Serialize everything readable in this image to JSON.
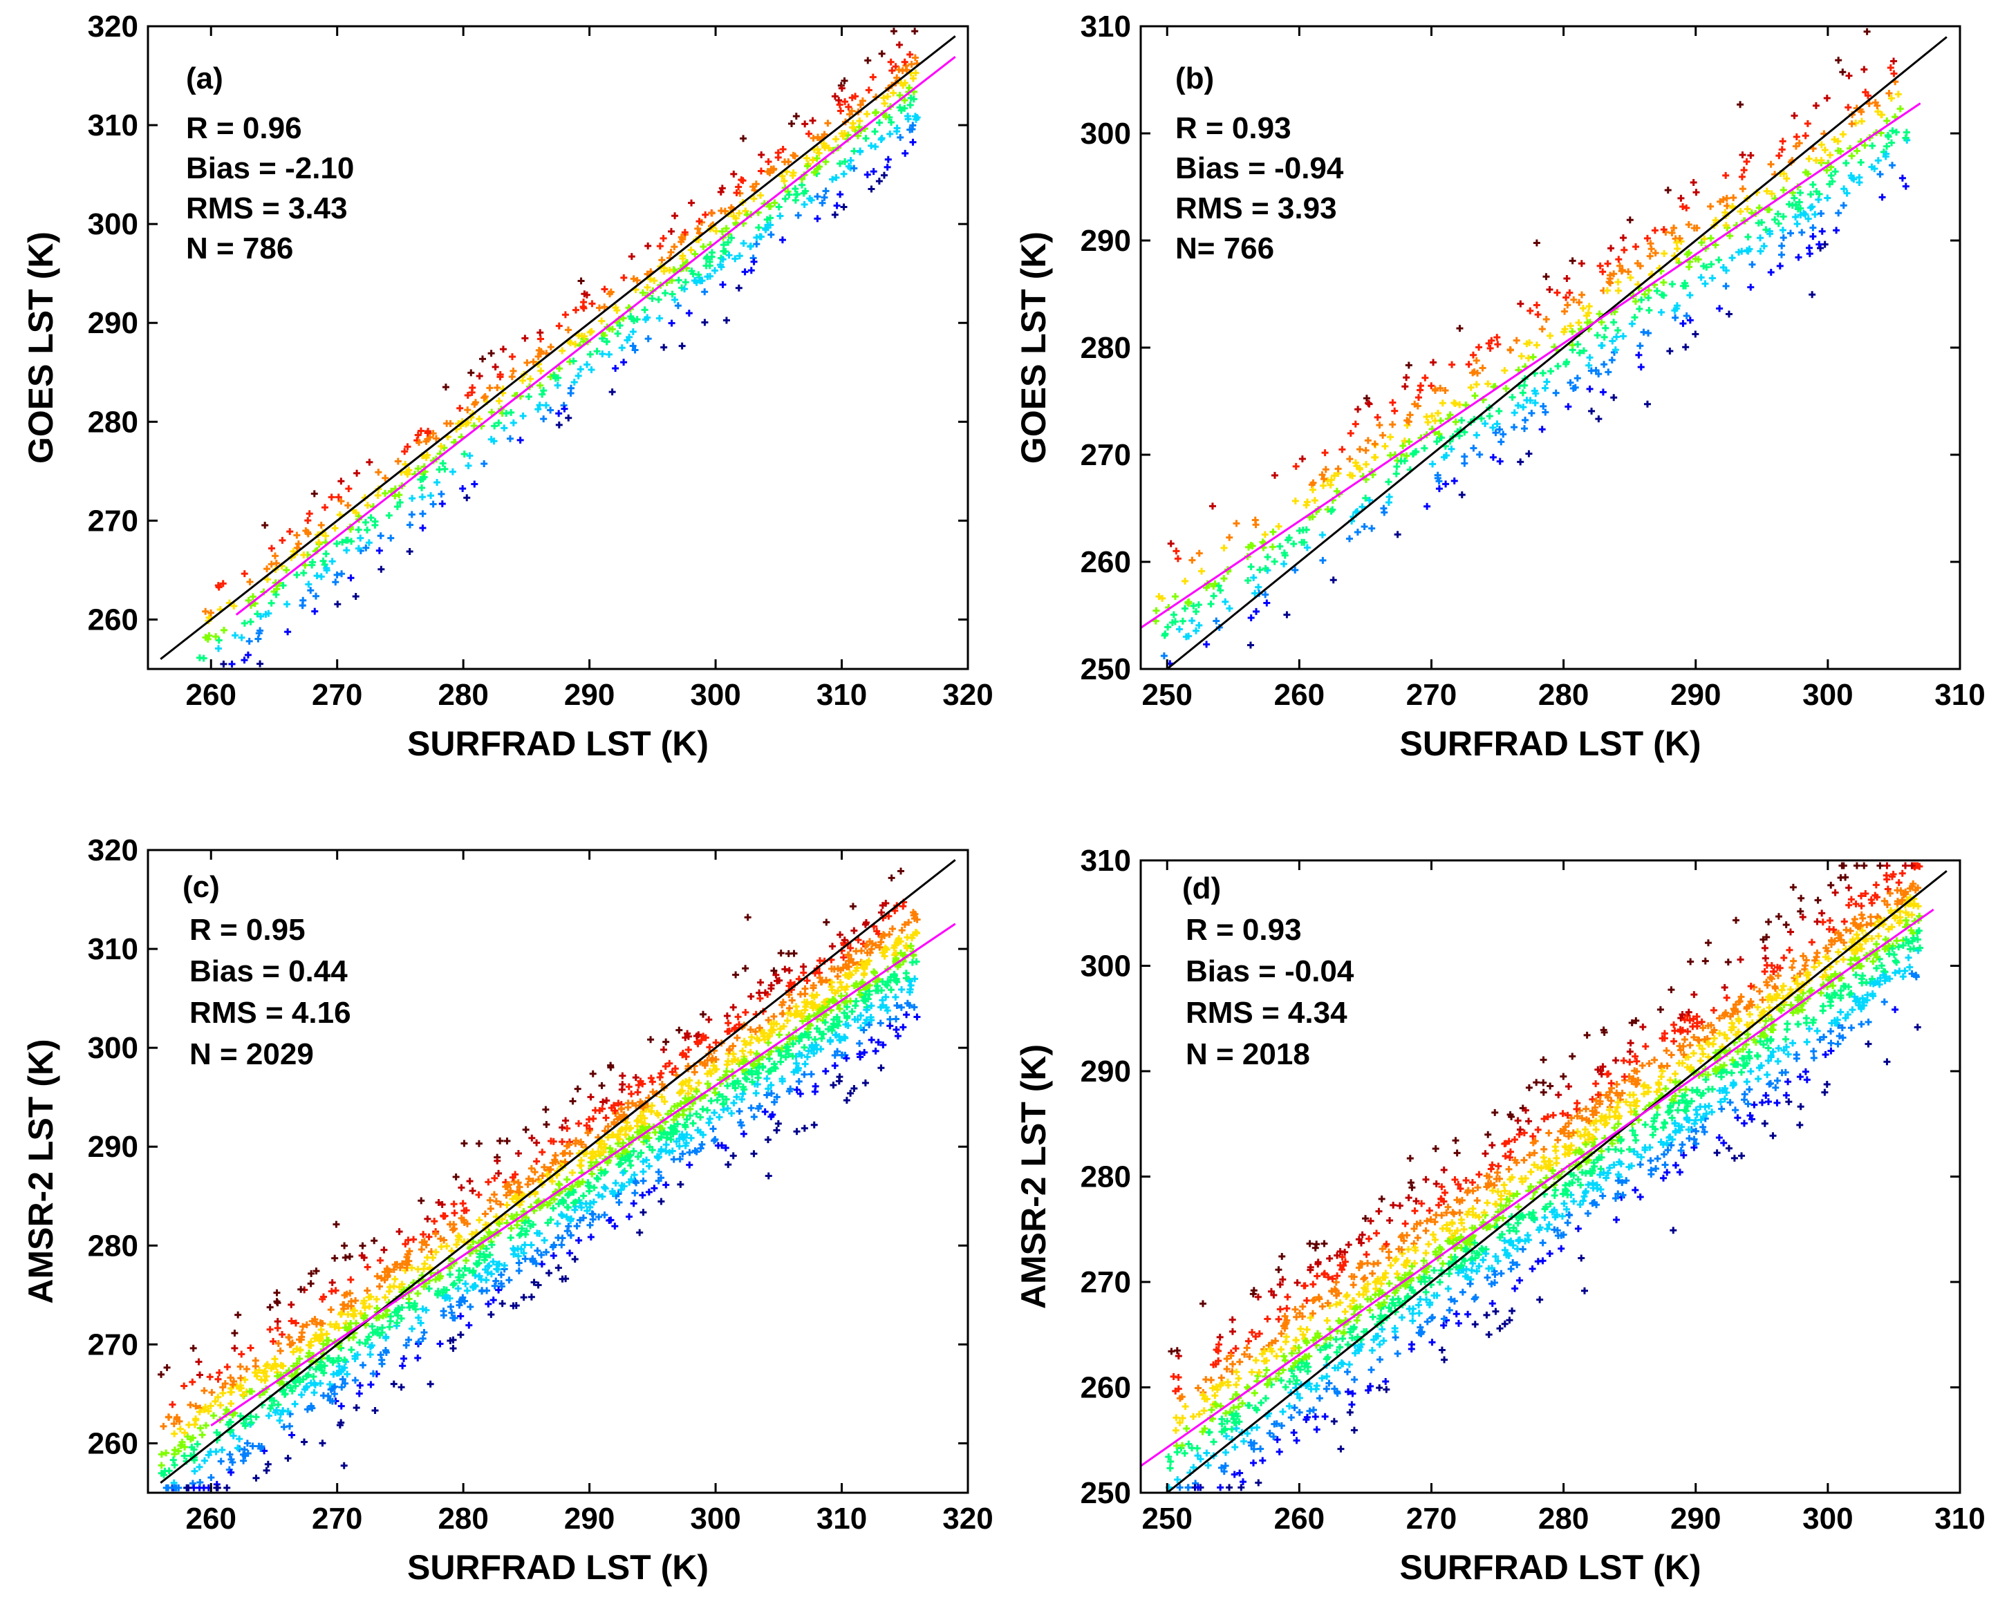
{
  "colors": {
    "one_to_one_line": "#000000",
    "fit_line": "#ff00ff",
    "density_colormap": [
      "#00008b",
      "#0000ff",
      "#0080ff",
      "#00d8ff",
      "#00ff80",
      "#80ff00",
      "#ffe000",
      "#ff8000",
      "#ff2000",
      "#c00000",
      "#600000"
    ]
  },
  "chart_data": [
    {
      "id": "a",
      "type": "scatter",
      "tag": "(a)",
      "xlabel": "SURFRAD LST (K)",
      "ylabel": "GOES LST (K)",
      "xlim": [
        255,
        320
      ],
      "ylim": [
        255,
        320
      ],
      "xticks": [
        260,
        270,
        280,
        290,
        300,
        310,
        320
      ],
      "yticks": [
        260,
        270,
        280,
        290,
        300,
        310,
        320
      ],
      "stats": [
        "R = 0.96",
        "Bias = -2.10",
        "RMS = 3.43",
        "N = 786"
      ],
      "n_points": 786,
      "x_range": [
        259,
        316
      ],
      "fit_line": {
        "slope": 0.99,
        "intercept": 1.1,
        "x_start": 262,
        "x_end": 319
      },
      "one_to_one": {
        "x_start": 256,
        "x_end": 319
      },
      "residual_std": 3.0
    },
    {
      "id": "b",
      "type": "scatter",
      "tag": "(b)",
      "xlabel": "SURFRAD LST (K)",
      "ylabel": "GOES LST (K)",
      "xlim": [
        248,
        310
      ],
      "ylim": [
        250,
        310
      ],
      "xticks": [
        250,
        260,
        270,
        280,
        290,
        300,
        310
      ],
      "yticks": [
        250,
        260,
        270,
        280,
        290,
        300,
        310
      ],
      "stats": [
        "R = 0.93",
        "Bias = -0.94",
        "RMS = 3.93",
        "N= 766"
      ],
      "n_points": 766,
      "x_range": [
        249,
        306
      ],
      "fit_line": {
        "slope": 0.83,
        "intercept": 48.0,
        "x_start": 248,
        "x_end": 307
      },
      "one_to_one": {
        "x_start": 250,
        "x_end": 309
      },
      "residual_std": 3.6
    },
    {
      "id": "c",
      "type": "scatter",
      "tag": "(c)",
      "xlabel": "SURFRAD LST (K)",
      "ylabel": "AMSR-2 LST (K)",
      "xlim": [
        255,
        320
      ],
      "ylim": [
        255,
        320
      ],
      "xticks": [
        260,
        270,
        280,
        290,
        300,
        310,
        320
      ],
      "yticks": [
        260,
        270,
        280,
        290,
        300,
        310,
        320
      ],
      "stats": [
        "R = 0.95",
        "Bias = 0.44",
        "RMS = 4.16",
        "N = 2029"
      ],
      "n_points": 2029,
      "x_range": [
        256,
        316
      ],
      "fit_line": {
        "slope": 0.86,
        "intercept": 38.2,
        "x_start": 260,
        "x_end": 319
      },
      "one_to_one": {
        "x_start": 256,
        "x_end": 319
      },
      "residual_std": 3.8
    },
    {
      "id": "d",
      "type": "scatter",
      "tag": "(d)",
      "xlabel": "SURFRAD LST (K)",
      "ylabel": "AMSR-2 LST (K)",
      "xlim": [
        248,
        310
      ],
      "ylim": [
        250,
        310
      ],
      "xticks": [
        250,
        260,
        270,
        280,
        290,
        300,
        310
      ],
      "yticks": [
        250,
        260,
        270,
        280,
        290,
        300,
        310
      ],
      "stats": [
        "R = 0.93",
        "Bias = -0.04",
        "RMS = 4.34",
        "N = 2018"
      ],
      "n_points": 2018,
      "x_range": [
        250,
        307
      ],
      "fit_line": {
        "slope": 0.88,
        "intercept": 34.3,
        "x_start": 248,
        "x_end": 308
      },
      "one_to_one": {
        "x_start": 250,
        "x_end": 309
      },
      "residual_std": 4.2
    }
  ]
}
